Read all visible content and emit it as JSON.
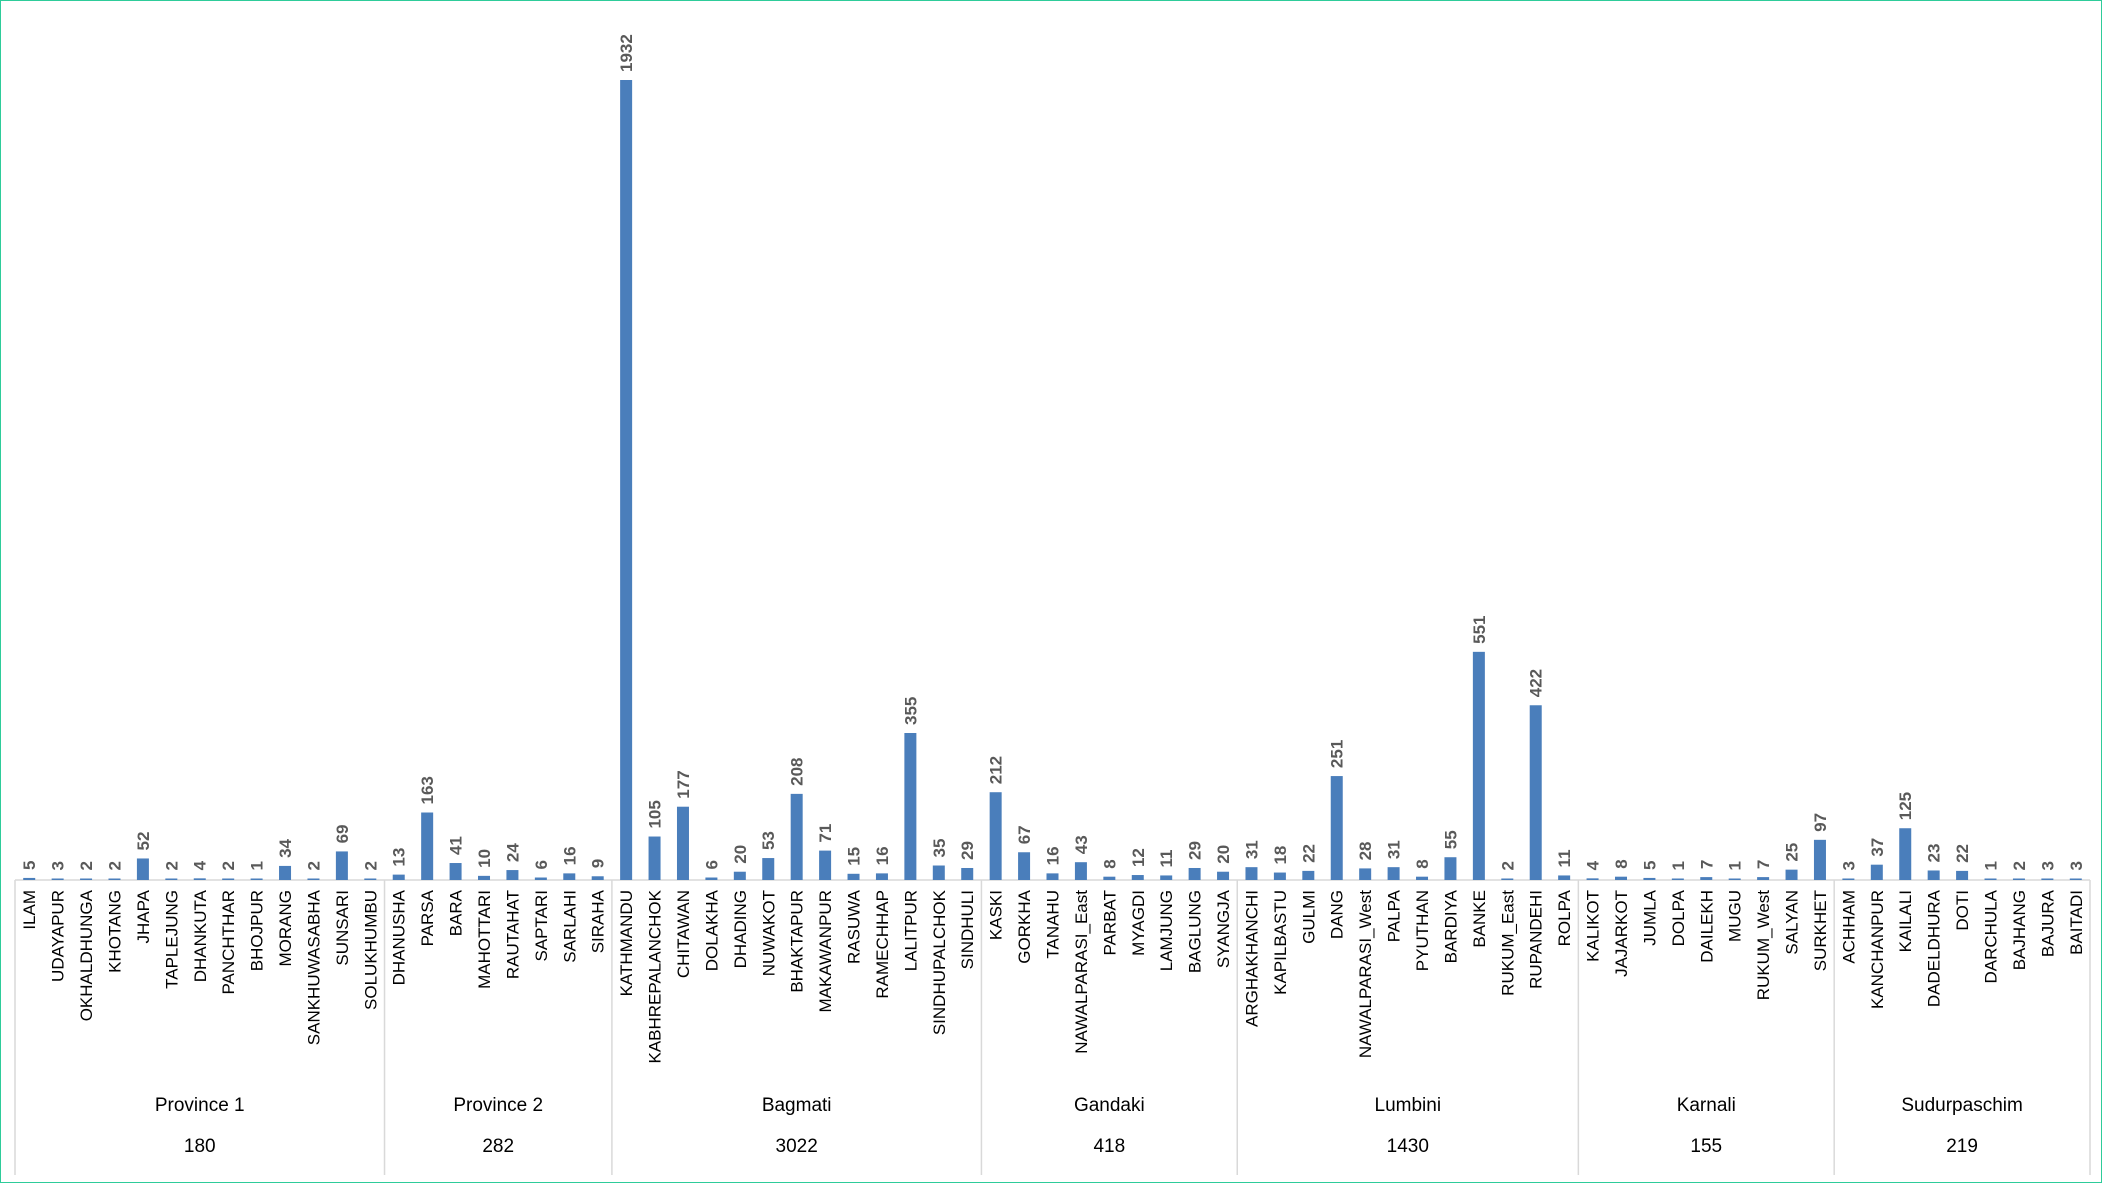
{
  "chart_data": {
    "type": "bar",
    "title": "",
    "xlabel": "",
    "ylabel": "",
    "ylim": [
      0,
      1932
    ],
    "grid": false,
    "legend": "none",
    "colors": {
      "bar": "#4a7ebb",
      "axis": "#d9d9d9",
      "label": "#595959"
    },
    "groups": [
      {
        "name": "Province 1",
        "total": "180",
        "categories": [
          "ILAM",
          "UDAYAPUR",
          "OKHALDHUNGA",
          "KHOTANG",
          "JHAPA",
          "TAPLEJUNG",
          "DHANKUTA",
          "PANCHTHAR",
          "BHOJPUR",
          "MORANG",
          "SANKHUWASABHA",
          "SUNSARI",
          "SOLUKHUMBU"
        ],
        "values": [
          5,
          3,
          2,
          2,
          52,
          2,
          4,
          2,
          1,
          34,
          2,
          69,
          2
        ]
      },
      {
        "name": "Province 2",
        "total": "282",
        "categories": [
          "DHANUSHA",
          "PARSA",
          "BARA",
          "MAHOTTARI",
          "RAUTAHAT",
          "SAPTARI",
          "SARLAHI",
          "SIRAHA"
        ],
        "values": [
          13,
          163,
          41,
          10,
          24,
          6,
          16,
          9
        ]
      },
      {
        "name": "Bagmati",
        "total": "3022",
        "categories": [
          "KATHMANDU",
          "KABHREPALANCHOK",
          "CHITAWAN",
          "DOLAKHA",
          "DHADING",
          "NUWAKOT",
          "BHAKTAPUR",
          "MAKAWANPUR",
          "RASUWA",
          "RAMECHHAP",
          "LALITPUR",
          "SINDHUPALCHOK",
          "SINDHULI"
        ],
        "values": [
          1932,
          105,
          177,
          6,
          20,
          53,
          208,
          71,
          15,
          16,
          355,
          35,
          29
        ]
      },
      {
        "name": "Gandaki",
        "total": "418",
        "categories": [
          "KASKI",
          "GORKHA",
          "TANAHU",
          "NAWALPARASI_East",
          "PARBAT",
          "MYAGDI",
          "LAMJUNG",
          "BAGLUNG",
          "SYANGJA"
        ],
        "values": [
          212,
          67,
          16,
          43,
          8,
          12,
          11,
          29,
          20
        ]
      },
      {
        "name": "Lumbini",
        "total": "1430",
        "categories": [
          "ARGHAKHANCHI",
          "KAPILBASTU",
          "GULMI",
          "DANG",
          "NAWALPARASI_West",
          "PALPA",
          "PYUTHAN",
          "BARDIYA",
          "BANKE",
          "RUKUM_East",
          "RUPANDEHI",
          "ROLPA"
        ],
        "values": [
          31,
          18,
          22,
          251,
          28,
          31,
          8,
          55,
          551,
          2,
          422,
          11
        ]
      },
      {
        "name": "Karnali",
        "total": "155",
        "categories": [
          "KALIKOT",
          "JAJARKOT",
          "JUMLA",
          "DOLPA",
          "DAILEKH",
          "MUGU",
          "RUKUM_West",
          "SALYAN",
          "SURKHET"
        ],
        "values": [
          4,
          8,
          5,
          1,
          7,
          1,
          7,
          25,
          97
        ]
      },
      {
        "name": "Sudurpaschim",
        "total": "219",
        "categories": [
          "ACHHAM",
          "KANCHANPUR",
          "KAILALI",
          "DADELDHURA",
          "DOTI",
          "DARCHULA",
          "BAJHANG",
          "BAJURA",
          "BAITADI"
        ],
        "values": [
          3,
          37,
          125,
          23,
          22,
          1,
          2,
          3,
          3
        ]
      }
    ]
  }
}
